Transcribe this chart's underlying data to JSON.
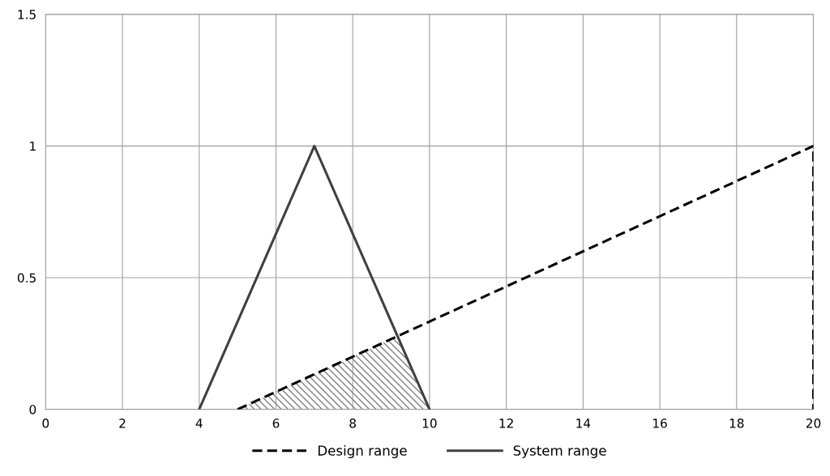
{
  "chart_data": {
    "type": "line",
    "series": [
      {
        "name": "Design range",
        "color": "#000000",
        "line_style": "dashed",
        "x": [
          5,
          20,
          20
        ],
        "values": [
          0,
          1,
          0
        ]
      },
      {
        "name": "System range",
        "color": "#404040",
        "line_style": "solid",
        "x": [
          4,
          7,
          10
        ],
        "values": [
          0,
          1,
          0
        ]
      },
      {
        "type": "area",
        "color": "#808080",
        "x": [
          5,
          9.17,
          10
        ],
        "values": [
          0,
          0.278,
          0
        ]
      }
    ],
    "xlim": [
      0,
      20
    ],
    "xticks": [
      0,
      2,
      4,
      6,
      8,
      10,
      12,
      14,
      16,
      18,
      20
    ],
    "ylim": [
      0,
      1.5
    ],
    "yticks": [
      0,
      0.5,
      1,
      1.5
    ],
    "grid": true,
    "legend": "bottom"
  }
}
